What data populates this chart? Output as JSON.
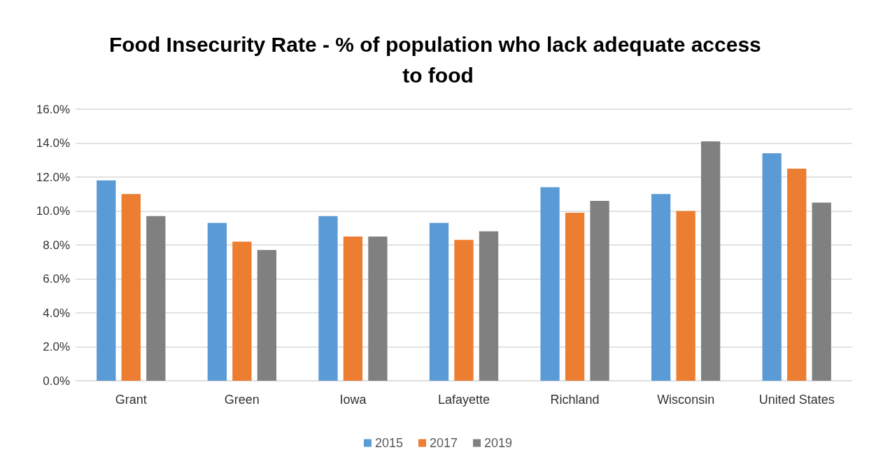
{
  "chart_data": {
    "type": "bar",
    "title": "Food Insecurity Rate - % of population who lack adequate access to food",
    "categories": [
      "Grant",
      "Green",
      "Iowa",
      "Lafayette",
      "Richland",
      "Wisconsin",
      "United States"
    ],
    "series": [
      {
        "name": "2015",
        "color": "#5b9bd5",
        "values": [
          11.8,
          9.3,
          9.7,
          9.3,
          11.4,
          11.0,
          13.4
        ]
      },
      {
        "name": "2017",
        "color": "#ed7d31",
        "values": [
          11.0,
          8.2,
          8.5,
          8.3,
          9.9,
          10.0,
          12.5
        ]
      },
      {
        "name": "2019",
        "color": "#808080",
        "values": [
          9.7,
          7.7,
          8.5,
          8.8,
          10.6,
          14.1,
          10.5
        ]
      }
    ],
    "ylim": [
      0,
      16
    ],
    "yticks": [
      {
        "value": 0,
        "label": "0.0%"
      },
      {
        "value": 2,
        "label": "2.0%"
      },
      {
        "value": 4,
        "label": "4.0%"
      },
      {
        "value": 6,
        "label": "6.0%"
      },
      {
        "value": 8,
        "label": "8.0%"
      },
      {
        "value": 10,
        "label": "10.0%"
      },
      {
        "value": 12,
        "label": "12.0%"
      },
      {
        "value": 14,
        "label": "14.0%"
      },
      {
        "value": 16,
        "label": "16.0%"
      }
    ],
    "grid": "y",
    "legend": "bottom"
  }
}
